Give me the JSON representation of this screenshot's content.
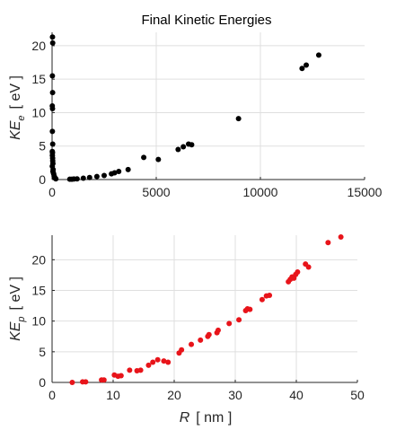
{
  "chart_data": [
    {
      "type": "scatter",
      "title": "Final Kinetic Energies",
      "xlabel": "",
      "ylabel": {
        "main": "KE",
        "sub": "e",
        "unit": "[ eV ]"
      },
      "xlim": [
        0,
        15000
      ],
      "ylim": [
        0,
        22
      ],
      "xticks": [
        0,
        5000,
        10000,
        15000
      ],
      "yticks": [
        0,
        5,
        10,
        15,
        20
      ],
      "grid": true,
      "marker_color": "#000000",
      "points": [
        [
          20,
          21.3
        ],
        [
          30,
          20.4
        ],
        [
          15,
          15.5
        ],
        [
          25,
          13.0
        ],
        [
          10,
          11.0
        ],
        [
          20,
          10.6
        ],
        [
          15,
          7.2
        ],
        [
          30,
          5.3
        ],
        [
          10,
          4.2
        ],
        [
          20,
          4.0
        ],
        [
          15,
          3.6
        ],
        [
          25,
          3.2
        ],
        [
          30,
          2.8
        ],
        [
          40,
          2.4
        ],
        [
          10,
          2.0
        ],
        [
          50,
          1.5
        ],
        [
          40,
          1.2
        ],
        [
          60,
          1.0
        ],
        [
          80,
          0.8
        ],
        [
          100,
          0.5
        ],
        [
          120,
          0.35
        ],
        [
          150,
          0.2
        ],
        [
          180,
          0.1
        ],
        [
          850,
          0.05
        ],
        [
          950,
          0.05
        ],
        [
          1050,
          0.08
        ],
        [
          1200,
          0.1
        ],
        [
          1500,
          0.2
        ],
        [
          1800,
          0.3
        ],
        [
          2150,
          0.45
        ],
        [
          2500,
          0.6
        ],
        [
          2850,
          0.85
        ],
        [
          3000,
          1.0
        ],
        [
          3200,
          1.2
        ],
        [
          3650,
          1.5
        ],
        [
          4400,
          3.3
        ],
        [
          5100,
          3.0
        ],
        [
          6050,
          4.5
        ],
        [
          6300,
          4.9
        ],
        [
          6550,
          5.3
        ],
        [
          6700,
          5.2
        ],
        [
          8950,
          9.1
        ],
        [
          12000,
          16.6
        ],
        [
          12200,
          17.1
        ],
        [
          12800,
          18.6
        ]
      ]
    },
    {
      "type": "scatter",
      "title": "",
      "xlabel": {
        "main": "R",
        "unit": "[ nm ]"
      },
      "ylabel": {
        "main": "KE",
        "sub": "p",
        "unit": "[ eV ]"
      },
      "xlim": [
        0,
        50
      ],
      "ylim": [
        0,
        24
      ],
      "xticks": [
        0,
        10,
        20,
        30,
        40,
        50
      ],
      "yticks": [
        0,
        5,
        10,
        15,
        20
      ],
      "grid": true,
      "marker_color": "#e8141a",
      "points": [
        [
          3.3,
          0.0
        ],
        [
          5.0,
          0.1
        ],
        [
          5.5,
          0.1
        ],
        [
          8.1,
          0.4
        ],
        [
          8.5,
          0.4
        ],
        [
          10.2,
          1.2
        ],
        [
          10.8,
          1.0
        ],
        [
          11.3,
          1.1
        ],
        [
          12.7,
          2.0
        ],
        [
          13.9,
          1.9
        ],
        [
          14.5,
          2.0
        ],
        [
          15.8,
          2.8
        ],
        [
          16.5,
          3.3
        ],
        [
          17.3,
          3.7
        ],
        [
          18.3,
          3.5
        ],
        [
          19.0,
          3.3
        ],
        [
          20.8,
          4.8
        ],
        [
          21.2,
          5.3
        ],
        [
          22.8,
          6.2
        ],
        [
          24.3,
          6.9
        ],
        [
          25.5,
          7.5
        ],
        [
          25.7,
          7.8
        ],
        [
          27.0,
          8.1
        ],
        [
          27.2,
          8.5
        ],
        [
          29.0,
          9.6
        ],
        [
          30.6,
          10.2
        ],
        [
          31.7,
          11.7
        ],
        [
          32.0,
          12.0
        ],
        [
          32.4,
          11.9
        ],
        [
          34.4,
          13.5
        ],
        [
          35.1,
          14.1
        ],
        [
          35.6,
          14.2
        ],
        [
          38.7,
          16.4
        ],
        [
          39.0,
          16.8
        ],
        [
          39.3,
          17.2
        ],
        [
          39.6,
          17.0
        ],
        [
          39.9,
          17.6
        ],
        [
          40.2,
          18.0
        ],
        [
          41.5,
          19.3
        ],
        [
          42.0,
          18.8
        ],
        [
          45.2,
          22.8
        ],
        [
          47.3,
          23.7
        ]
      ]
    }
  ]
}
